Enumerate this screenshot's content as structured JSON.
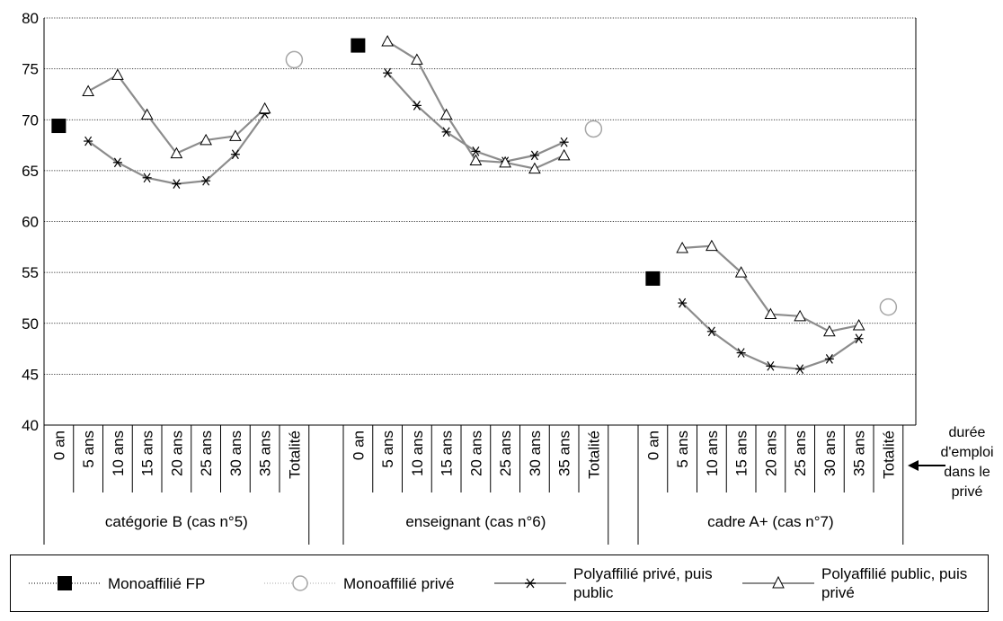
{
  "chart_data": {
    "type": "line",
    "ylim": [
      40,
      80
    ],
    "yticks": [
      40,
      45,
      50,
      55,
      60,
      65,
      70,
      75,
      80
    ],
    "grid": true,
    "legend_position": "bottom",
    "x_categories": [
      "0 an",
      "5 ans",
      "10 ans",
      "15 ans",
      "20 ans",
      "25 ans",
      "30 ans",
      "35 ans",
      "Totalité"
    ],
    "x_note": "durée d'emploi dans le privé",
    "groups": [
      {
        "label": "catégorie B (cas n°5)",
        "mono_fp": 69.4,
        "mono_prive": 75.9,
        "poly_prive_public": [
          null,
          67.9,
          65.8,
          64.3,
          63.7,
          64.0,
          66.6,
          70.6,
          null
        ],
        "poly_public_prive": [
          null,
          72.8,
          74.4,
          70.5,
          66.7,
          68.0,
          68.4,
          71.1,
          null
        ]
      },
      {
        "label": "enseignant (cas n°6)",
        "mono_fp": 77.3,
        "mono_prive": 69.1,
        "poly_prive_public": [
          null,
          74.6,
          71.4,
          68.8,
          66.9,
          65.9,
          66.5,
          67.8,
          null
        ],
        "poly_public_prive": [
          null,
          77.7,
          75.9,
          70.5,
          66.0,
          65.8,
          65.2,
          66.5,
          null
        ]
      },
      {
        "label": "cadre A+ (cas n°7)",
        "mono_fp": 54.4,
        "mono_prive": 51.6,
        "poly_prive_public": [
          null,
          52.0,
          49.2,
          47.1,
          45.8,
          45.5,
          46.5,
          48.5,
          null
        ],
        "poly_public_prive": [
          null,
          57.4,
          57.6,
          55.0,
          50.9,
          50.7,
          49.2,
          49.8,
          null
        ]
      }
    ],
    "series": [
      {
        "key": "mono_fp",
        "name": "Monoaffilié FP",
        "marker": "square",
        "color": "#000000"
      },
      {
        "key": "mono_prive",
        "name": "Monoaffilié privé",
        "marker": "circle",
        "color": "#a6a6a6"
      },
      {
        "key": "poly_prive_public",
        "name": "Polyaffilié privé, puis public",
        "marker": "star",
        "color": "#8c8c8c"
      },
      {
        "key": "poly_public_prive",
        "name": "Polyaffilié public, puis privé",
        "marker": "triangle",
        "color": "#8c8c8c"
      }
    ]
  }
}
